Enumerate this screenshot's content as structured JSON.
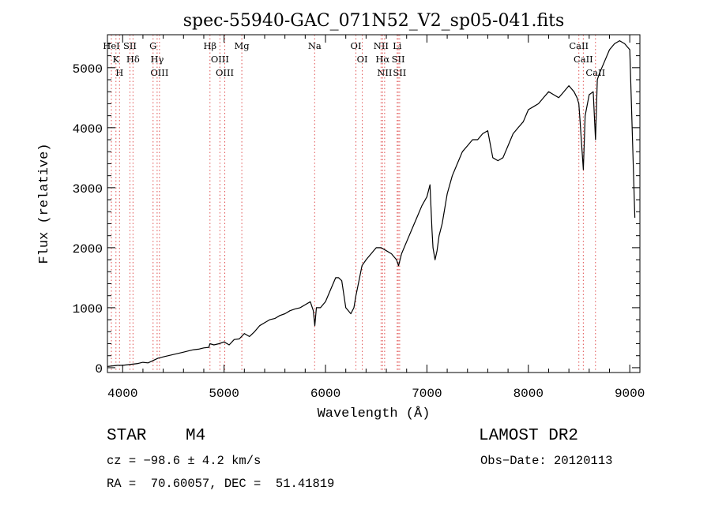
{
  "chart_data": {
    "type": "line",
    "title": "spec-55940-GAC_071N52_V2_sp05-041.fits",
    "xlabel": "Wavelength (Å)",
    "ylabel": "Flux (relative)",
    "xlim": [
      3850,
      9100
    ],
    "ylim": [
      -80,
      5550
    ],
    "x_ticks": [
      4000,
      5000,
      6000,
      7000,
      8000,
      9000
    ],
    "y_ticks": [
      0,
      1000,
      2000,
      3000,
      4000,
      5000
    ],
    "series": [
      {
        "name": "flux",
        "x": [
          3850,
          3900,
          3950,
          4000,
          4050,
          4100,
          4150,
          4200,
          4250,
          4300,
          4350,
          4400,
          4450,
          4500,
          4550,
          4600,
          4650,
          4700,
          4750,
          4800,
          4850,
          4860,
          4900,
          4950,
          5000,
          5050,
          5100,
          5150,
          5200,
          5250,
          5300,
          5350,
          5400,
          5450,
          5500,
          5550,
          5600,
          5650,
          5700,
          5750,
          5800,
          5850,
          5880,
          5895,
          5910,
          5950,
          6000,
          6050,
          6100,
          6130,
          6160,
          6200,
          6250,
          6280,
          6300,
          6330,
          6360,
          6400,
          6450,
          6500,
          6550,
          6600,
          6650,
          6700,
          6720,
          6750,
          6800,
          6850,
          6900,
          6950,
          7000,
          7030,
          7050,
          7060,
          7080,
          7100,
          7120,
          7150,
          7200,
          7250,
          7300,
          7350,
          7400,
          7450,
          7500,
          7550,
          7600,
          7650,
          7700,
          7750,
          7800,
          7850,
          7900,
          7950,
          8000,
          8050,
          8100,
          8150,
          8200,
          8250,
          8300,
          8350,
          8400,
          8450,
          8480,
          8498,
          8510,
          8542,
          8560,
          8600,
          8640,
          8662,
          8680,
          8700,
          8750,
          8800,
          8850,
          8900,
          8950,
          9000,
          9050
        ],
        "y": [
          20,
          30,
          40,
          40,
          50,
          60,
          70,
          90,
          80,
          120,
          160,
          180,
          200,
          220,
          240,
          260,
          280,
          300,
          310,
          330,
          340,
          400,
          380,
          400,
          430,
          380,
          470,
          480,
          570,
          520,
          600,
          700,
          750,
          800,
          820,
          870,
          900,
          950,
          980,
          1000,
          1050,
          1100,
          950,
          700,
          1000,
          1000,
          1100,
          1300,
          1500,
          1500,
          1450,
          1000,
          900,
          1000,
          1200,
          1450,
          1700,
          1800,
          1900,
          2000,
          2000,
          1950,
          1900,
          1800,
          1700,
          1900,
          2100,
          2300,
          2500,
          2700,
          2850,
          3050,
          2300,
          2000,
          1800,
          1950,
          2200,
          2400,
          2900,
          3200,
          3400,
          3600,
          3700,
          3800,
          3800,
          3900,
          3950,
          3500,
          3450,
          3500,
          3700,
          3900,
          4000,
          4100,
          4300,
          4350,
          4400,
          4500,
          4600,
          4550,
          4500,
          4600,
          4700,
          4600,
          4500,
          4400,
          4100,
          3300,
          4200,
          4550,
          4600,
          3800,
          4800,
          4900,
          5100,
          5300,
          5400,
          5450,
          5400,
          5300,
          2500
        ]
      }
    ],
    "line_markers": [
      {
        "wavelength": 3889,
        "labels": [
          "HeI"
        ]
      },
      {
        "wavelength": 3934,
        "labels": [
          "K"
        ]
      },
      {
        "wavelength": 3969,
        "labels": [
          "H"
        ]
      },
      {
        "wavelength": 4072,
        "labels": [
          "SII"
        ]
      },
      {
        "wavelength": 4102,
        "labels": [
          "Hδ"
        ]
      },
      {
        "wavelength": 4300,
        "labels": [
          "G"
        ]
      },
      {
        "wavelength": 4340,
        "labels": [
          "Hγ"
        ]
      },
      {
        "wavelength": 4363,
        "labels": [
          "OIII"
        ]
      },
      {
        "wavelength": 4861,
        "labels": [
          "Hβ"
        ]
      },
      {
        "wavelength": 4959,
        "labels": [
          "OIII"
        ]
      },
      {
        "wavelength": 5007,
        "labels": [
          "OIII"
        ]
      },
      {
        "wavelength": 5175,
        "labels": [
          "Mg"
        ]
      },
      {
        "wavelength": 5893,
        "labels": [
          "Na"
        ]
      },
      {
        "wavelength": 6300,
        "labels": [
          "OI"
        ]
      },
      {
        "wavelength": 6363,
        "labels": [
          "OI"
        ]
      },
      {
        "wavelength": 6548,
        "labels": [
          "NII"
        ]
      },
      {
        "wavelength": 6563,
        "labels": [
          "Hα"
        ]
      },
      {
        "wavelength": 6583,
        "labels": [
          "NII"
        ]
      },
      {
        "wavelength": 6707,
        "labels": [
          "Li"
        ]
      },
      {
        "wavelength": 6717,
        "labels": [
          "SII"
        ]
      },
      {
        "wavelength": 6731,
        "labels": [
          "SII"
        ]
      },
      {
        "wavelength": 8498,
        "labels": [
          "CaII"
        ]
      },
      {
        "wavelength": 8542,
        "labels": [
          "CaII"
        ]
      },
      {
        "wavelength": 8662,
        "labels": [
          "CaII"
        ]
      }
    ],
    "colors": {
      "spectrum": "#000000",
      "axes": "#000000",
      "line_markers": "#e05050"
    }
  },
  "info": {
    "object_class": "STAR",
    "subclass": "M4",
    "survey": "LAMOST DR2",
    "redshift": "cz = −98.6 ± 4.2 km/s",
    "obs_date": "Obs−Date: 20120113",
    "coords": "RA =  70.60057, DEC =  51.41819"
  }
}
